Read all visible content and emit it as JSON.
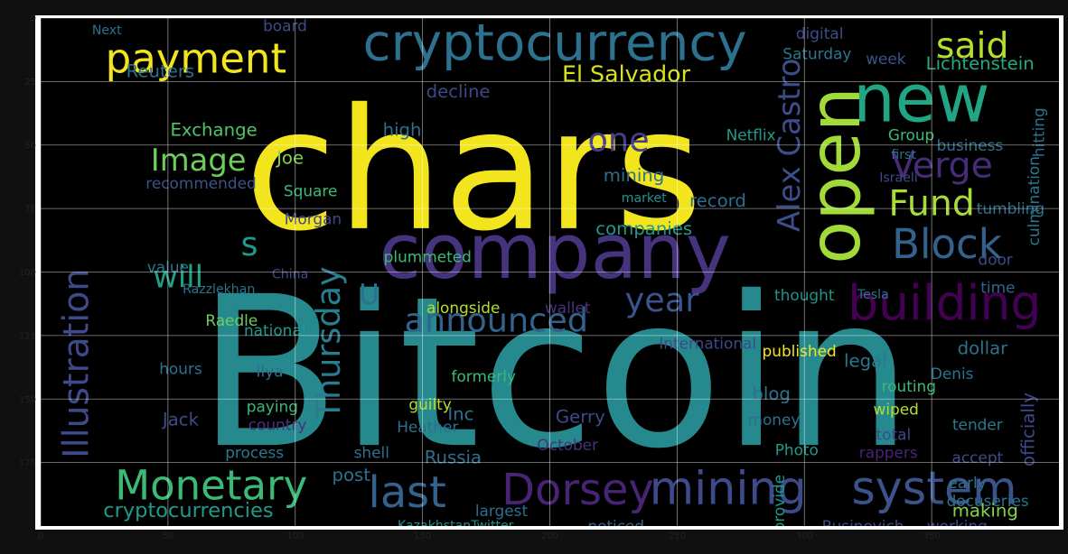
{
  "chart_data": {
    "type": "wordcloud",
    "title": "",
    "xlabel": "",
    "ylabel": "",
    "xlim": [
      0,
      400
    ],
    "ylim": [
      200,
      0
    ],
    "grid": true,
    "x_ticks": [
      0,
      50,
      100,
      150,
      200,
      250,
      300,
      350
    ],
    "y_ticks": [
      0,
      25,
      50,
      75,
      100,
      125,
      150,
      175
    ],
    "colormap": "viridis",
    "background": "#000000",
    "words": [
      {
        "text": "Bitcoin",
        "x": 202,
        "y": 140,
        "size": 82,
        "color": "#26898e",
        "vertical": false
      },
      {
        "text": "chars",
        "x": 170,
        "y": 60,
        "size": 66,
        "color": "#f2e51d",
        "vertical": false
      },
      {
        "text": "company",
        "x": 202,
        "y": 92,
        "size": 30,
        "color": "#46337e",
        "vertical": false
      },
      {
        "text": "cryptocurrency",
        "x": 202,
        "y": 10,
        "size": 20,
        "color": "#2c728e",
        "vertical": false
      },
      {
        "text": "new",
        "x": 346,
        "y": 32,
        "size": 26,
        "color": "#21a685",
        "vertical": false
      },
      {
        "text": "open",
        "x": 312,
        "y": 62,
        "size": 28,
        "color": "#a2da37",
        "vertical": true
      },
      {
        "text": "building",
        "x": 355,
        "y": 112,
        "size": 19,
        "color": "#440154",
        "vertical": false
      },
      {
        "text": "Monetary",
        "x": 67,
        "y": 184,
        "size": 16,
        "color": "#3aba76",
        "vertical": false
      },
      {
        "text": "mining",
        "x": 270,
        "y": 185,
        "size": 18,
        "color": "#3e4a89",
        "vertical": false
      },
      {
        "text": "system",
        "x": 351,
        "y": 185,
        "size": 18,
        "color": "#3b528b",
        "vertical": false
      },
      {
        "text": "Dorsey",
        "x": 211,
        "y": 186,
        "size": 17,
        "color": "#482475",
        "vertical": false
      },
      {
        "text": "last",
        "x": 144,
        "y": 187,
        "size": 17,
        "color": "#33638d",
        "vertical": false
      },
      {
        "text": "Block",
        "x": 356,
        "y": 89,
        "size": 16,
        "color": "#33638d",
        "vertical": false
      },
      {
        "text": "payment",
        "x": 61,
        "y": 16,
        "size": 16,
        "color": "#f2e51d",
        "vertical": false
      },
      {
        "text": "said",
        "x": 366,
        "y": 11,
        "size": 14,
        "color": "#b5de2b",
        "vertical": false
      },
      {
        "text": "Illustration",
        "x": 14,
        "y": 136,
        "size": 14,
        "color": "#3e4a89",
        "vertical": true
      },
      {
        "text": "Verge",
        "x": 354,
        "y": 58,
        "size": 14,
        "color": "#472c7a",
        "vertical": false
      },
      {
        "text": "Fund",
        "x": 350,
        "y": 73,
        "size": 14,
        "color": "#a8db34",
        "vertical": false
      },
      {
        "text": "Thursday",
        "x": 113,
        "y": 128,
        "size": 13,
        "color": "#287d8e",
        "vertical": true
      },
      {
        "text": "announced",
        "x": 179,
        "y": 119,
        "size": 13,
        "color": "#33638d",
        "vertical": false
      },
      {
        "text": "year",
        "x": 244,
        "y": 111,
        "size": 13,
        "color": "#39558c",
        "vertical": false
      },
      {
        "text": "one",
        "x": 227,
        "y": 48,
        "size": 13,
        "color": "#433e85",
        "vertical": false
      },
      {
        "text": "Image",
        "x": 62,
        "y": 56,
        "size": 12,
        "color": "#6ccd5a",
        "vertical": false
      },
      {
        "text": "Alex Castro",
        "x": 294,
        "y": 50,
        "size": 12,
        "color": "#3d4d8a",
        "vertical": true
      },
      {
        "text": "will",
        "x": 54,
        "y": 102,
        "size": 12,
        "color": "#1fa187",
        "vertical": false
      },
      {
        "text": "s",
        "x": 82,
        "y": 89,
        "size": 13,
        "color": "#1f9a8a",
        "vertical": false
      },
      {
        "text": "U",
        "x": 129,
        "y": 109,
        "size": 11,
        "color": "#2c728e",
        "vertical": false
      },
      {
        "text": "El Salvador",
        "x": 230,
        "y": 22,
        "size": 9,
        "color": "#d8e219",
        "vertical": false
      },
      {
        "text": "cryptocurrencies",
        "x": 58,
        "y": 194,
        "size": 8,
        "color": "#1e9b8a",
        "vertical": false
      },
      {
        "text": "Reuters",
        "x": 47,
        "y": 21,
        "size": 7,
        "color": "#2d708e",
        "vertical": false
      },
      {
        "text": "decline",
        "x": 164,
        "y": 29,
        "size": 7,
        "color": "#3e4989",
        "vertical": false
      },
      {
        "text": "digital",
        "x": 306,
        "y": 6,
        "size": 6,
        "color": "#3e4c8a",
        "vertical": false
      },
      {
        "text": "Lichtenstein",
        "x": 369,
        "y": 18,
        "size": 7,
        "color": "#23a983",
        "vertical": false
      },
      {
        "text": "week",
        "x": 332,
        "y": 16,
        "size": 6,
        "color": "#3b528b",
        "vertical": false
      },
      {
        "text": "Saturday",
        "x": 305,
        "y": 14,
        "size": 6,
        "color": "#2a788e",
        "vertical": false
      },
      {
        "text": "Exchange",
        "x": 68,
        "y": 44,
        "size": 7,
        "color": "#50c46a",
        "vertical": false
      },
      {
        "text": "Joe",
        "x": 98,
        "y": 55,
        "size": 7,
        "color": "#84d44b",
        "vertical": false
      },
      {
        "text": "Square",
        "x": 106,
        "y": 68,
        "size": 6,
        "color": "#3aba76",
        "vertical": false
      },
      {
        "text": "Morgan",
        "x": 107,
        "y": 79,
        "size": 6,
        "color": "#404688",
        "vertical": false
      },
      {
        "text": "recommended",
        "x": 63,
        "y": 65,
        "size": 6,
        "color": "#3b528b",
        "vertical": false
      },
      {
        "text": "high",
        "x": 142,
        "y": 44,
        "size": 7,
        "color": "#2d708e",
        "vertical": false
      },
      {
        "text": "mining",
        "x": 233,
        "y": 62,
        "size": 7,
        "color": "#2c728e",
        "vertical": false
      },
      {
        "text": "record",
        "x": 266,
        "y": 72,
        "size": 7,
        "color": "#2e6e8e",
        "vertical": false
      },
      {
        "text": "companies",
        "x": 237,
        "y": 83,
        "size": 7,
        "color": "#1f998a",
        "vertical": false
      },
      {
        "text": "market",
        "x": 237,
        "y": 71,
        "size": 5,
        "color": "#20928c",
        "vertical": false
      },
      {
        "text": "Netflix",
        "x": 279,
        "y": 46,
        "size": 6,
        "color": "#1e9b8a",
        "vertical": false
      },
      {
        "text": "Group",
        "x": 342,
        "y": 46,
        "size": 6,
        "color": "#3aba76",
        "vertical": false
      },
      {
        "text": "business",
        "x": 365,
        "y": 50,
        "size": 6,
        "color": "#2d708e",
        "vertical": false
      },
      {
        "text": "first",
        "x": 339,
        "y": 54,
        "size": 5,
        "color": "#2c728e",
        "vertical": false
      },
      {
        "text": "Israeli",
        "x": 337,
        "y": 63,
        "size": 5,
        "color": "#3e4a89",
        "vertical": false
      },
      {
        "text": "culmination",
        "x": 390,
        "y": 72,
        "size": 6,
        "color": "#2a788e",
        "vertical": true
      },
      {
        "text": "tumbling",
        "x": 381,
        "y": 75,
        "size": 6,
        "color": "#2e6e8e",
        "vertical": false
      },
      {
        "text": "value",
        "x": 50,
        "y": 98,
        "size": 6,
        "color": "#2a788e",
        "vertical": false
      },
      {
        "text": "Razzlekhan",
        "x": 70,
        "y": 107,
        "size": 5,
        "color": "#2c728e",
        "vertical": false
      },
      {
        "text": "Raedle",
        "x": 75,
        "y": 119,
        "size": 6,
        "color": "#6ccd5a",
        "vertical": false
      },
      {
        "text": "national",
        "x": 92,
        "y": 123,
        "size": 6,
        "color": "#1e9b8a",
        "vertical": false
      },
      {
        "text": "China",
        "x": 98,
        "y": 101,
        "size": 5,
        "color": "#3e4989",
        "vertical": false
      },
      {
        "text": "plummeted",
        "x": 152,
        "y": 94,
        "size": 6,
        "color": "#3aba76",
        "vertical": false
      },
      {
        "text": "alongside",
        "x": 166,
        "y": 114,
        "size": 6,
        "color": "#b5de2b",
        "vertical": false
      },
      {
        "text": "wallet",
        "x": 207,
        "y": 114,
        "size": 6,
        "color": "#46327e",
        "vertical": false
      },
      {
        "text": "International",
        "x": 262,
        "y": 128,
        "size": 6,
        "color": "#3e4989",
        "vertical": false
      },
      {
        "text": "published",
        "x": 298,
        "y": 131,
        "size": 6,
        "color": "#f2e51d",
        "vertical": false
      },
      {
        "text": "thought",
        "x": 300,
        "y": 109,
        "size": 6,
        "color": "#20928c",
        "vertical": false
      },
      {
        "text": "Tesla",
        "x": 327,
        "y": 109,
        "size": 5,
        "color": "#2c728e",
        "vertical": false
      },
      {
        "text": "dollar",
        "x": 370,
        "y": 130,
        "size": 7,
        "color": "#2c728e",
        "vertical": false
      },
      {
        "text": "door",
        "x": 375,
        "y": 95,
        "size": 6,
        "color": "#3e4989",
        "vertical": false
      },
      {
        "text": "time",
        "x": 376,
        "y": 106,
        "size": 6,
        "color": "#33638d",
        "vertical": false
      },
      {
        "text": "legal",
        "x": 324,
        "y": 135,
        "size": 7,
        "color": "#2a788e",
        "vertical": false
      },
      {
        "text": "Ilya",
        "x": 90,
        "y": 139,
        "size": 6,
        "color": "#2e6e8e",
        "vertical": false
      },
      {
        "text": "hours",
        "x": 55,
        "y": 138,
        "size": 6,
        "color": "#2c728e",
        "vertical": false
      },
      {
        "text": "paying",
        "x": 91,
        "y": 153,
        "size": 6,
        "color": "#3aba76",
        "vertical": false
      },
      {
        "text": "Jack",
        "x": 55,
        "y": 158,
        "size": 7,
        "color": "#3e4a89",
        "vertical": false
      },
      {
        "text": "country",
        "x": 93,
        "y": 160,
        "size": 6,
        "color": "#46337e",
        "vertical": false
      },
      {
        "text": "guilty",
        "x": 153,
        "y": 152,
        "size": 6,
        "color": "#b5de2b",
        "vertical": false
      },
      {
        "text": "Heather",
        "x": 152,
        "y": 161,
        "size": 6,
        "color": "#2d708e",
        "vertical": false
      },
      {
        "text": "formerly",
        "x": 174,
        "y": 141,
        "size": 6,
        "color": "#3aba76",
        "vertical": false
      },
      {
        "text": "Inc",
        "x": 165,
        "y": 156,
        "size": 7,
        "color": "#2c728e",
        "vertical": false
      },
      {
        "text": "Gerry",
        "x": 212,
        "y": 157,
        "size": 7,
        "color": "#3e4989",
        "vertical": false
      },
      {
        "text": "blog",
        "x": 287,
        "y": 148,
        "size": 7,
        "color": "#2c728e",
        "vertical": false
      },
      {
        "text": "money",
        "x": 288,
        "y": 158,
        "size": 6,
        "color": "#2d708e",
        "vertical": false
      },
      {
        "text": "routing",
        "x": 341,
        "y": 145,
        "size": 6,
        "color": "#3aba76",
        "vertical": false
      },
      {
        "text": "wiped",
        "x": 336,
        "y": 154,
        "size": 6,
        "color": "#b5de2b",
        "vertical": false
      },
      {
        "text": "process",
        "x": 84,
        "y": 171,
        "size": 6,
        "color": "#2a788e",
        "vertical": false
      },
      {
        "text": "shell",
        "x": 130,
        "y": 171,
        "size": 6,
        "color": "#2c728e",
        "vertical": false
      },
      {
        "text": "Russia",
        "x": 162,
        "y": 173,
        "size": 7,
        "color": "#2d708e",
        "vertical": false
      },
      {
        "text": "October",
        "x": 207,
        "y": 168,
        "size": 6,
        "color": "#46337e",
        "vertical": false
      },
      {
        "text": "Photo",
        "x": 297,
        "y": 170,
        "size": 6,
        "color": "#1e9b8a",
        "vertical": false
      },
      {
        "text": "total",
        "x": 335,
        "y": 164,
        "size": 6,
        "color": "#3e4a89",
        "vertical": false
      },
      {
        "text": "rappers",
        "x": 333,
        "y": 171,
        "size": 6,
        "color": "#482475",
        "vertical": false
      },
      {
        "text": "tender",
        "x": 368,
        "y": 160,
        "size": 6,
        "color": "#2a788e",
        "vertical": false
      },
      {
        "text": "accept",
        "x": 368,
        "y": 173,
        "size": 6,
        "color": "#3e4c8a",
        "vertical": false
      },
      {
        "text": "early",
        "x": 364,
        "y": 183,
        "size": 6,
        "color": "#2c728e",
        "vertical": false
      },
      {
        "text": "docuseries",
        "x": 372,
        "y": 190,
        "size": 6,
        "color": "#2c728e",
        "vertical": false
      },
      {
        "text": "making",
        "x": 371,
        "y": 194,
        "size": 7,
        "color": "#84d44b",
        "vertical": false
      },
      {
        "text": "post",
        "x": 122,
        "y": 180,
        "size": 7,
        "color": "#2c728e",
        "vertical": false
      },
      {
        "text": "working",
        "x": 360,
        "y": 200,
        "size": 6,
        "color": "#3e4989",
        "vertical": false
      },
      {
        "text": "Rusinovich",
        "x": 323,
        "y": 200,
        "size": 6,
        "color": "#3e4a89",
        "vertical": false
      },
      {
        "text": "officially",
        "x": 388,
        "y": 162,
        "size": 7,
        "color": "#3e4989",
        "vertical": true
      },
      {
        "text": "Denis",
        "x": 358,
        "y": 140,
        "size": 6,
        "color": "#2c728e",
        "vertical": false
      },
      {
        "text": "largest",
        "x": 181,
        "y": 194,
        "size": 6,
        "color": "#2e6e8e",
        "vertical": false
      },
      {
        "text": "noticed",
        "x": 226,
        "y": 200,
        "size": 6,
        "color": "#33638d",
        "vertical": false
      },
      {
        "text": "KazakhstanTwitter",
        "x": 163,
        "y": 200,
        "size": 5,
        "color": "#20928c",
        "vertical": false
      },
      {
        "text": "provide",
        "x": 290,
        "y": 191,
        "size": 6,
        "color": "#1f998a",
        "vertical": true
      },
      {
        "text": "board",
        "x": 96,
        "y": 3,
        "size": 6,
        "color": "#3e4c8a",
        "vertical": false
      },
      {
        "text": "Next",
        "x": 26,
        "y": 5,
        "size": 5,
        "color": "#2c728e",
        "vertical": false
      },
      {
        "text": "hitting",
        "x": 392,
        "y": 45,
        "size": 6,
        "color": "#2c728e",
        "vertical": true
      }
    ]
  }
}
